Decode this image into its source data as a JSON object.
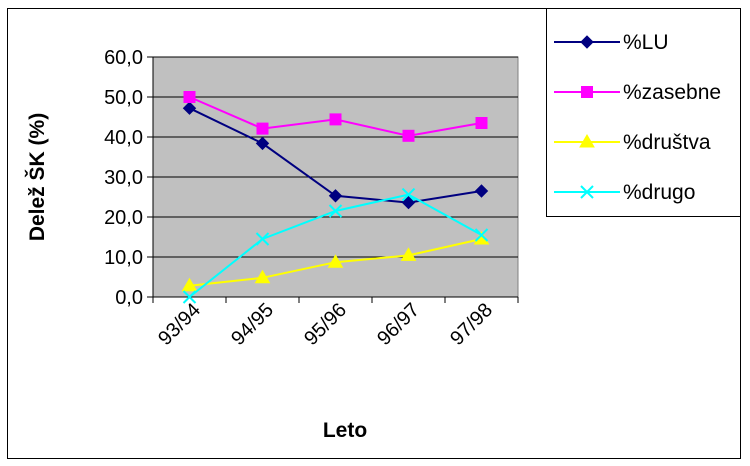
{
  "chart_data": {
    "type": "line",
    "title": "",
    "xlabel": "Leto",
    "ylabel": "Delež ŠK (%)",
    "categories": [
      "93/94",
      "94/95",
      "95/96",
      "96/97",
      "97/98"
    ],
    "ylim": [
      0,
      60
    ],
    "yticks": [
      "0,0",
      "10,0",
      "20,0",
      "30,0",
      "40,0",
      "50,0",
      "60,0"
    ],
    "grid": true,
    "legend_position": "top-right",
    "series": [
      {
        "name": "%LU",
        "values": [
          47.2,
          38.4,
          25.3,
          23.6,
          26.5
        ],
        "color": "#000080",
        "marker": "diamond"
      },
      {
        "name": "%zasebne",
        "values": [
          50.0,
          42.1,
          44.4,
          40.3,
          43.5
        ],
        "color": "#ff00ff",
        "marker": "square"
      },
      {
        "name": "%društva",
        "values": [
          2.8,
          4.8,
          8.7,
          10.4,
          14.5
        ],
        "color": "#ffff00",
        "marker": "triangle"
      },
      {
        "name": "%drugo",
        "values": [
          0.0,
          14.5,
          21.5,
          25.6,
          15.5
        ],
        "color": "#00ffff",
        "marker": "x"
      }
    ]
  }
}
